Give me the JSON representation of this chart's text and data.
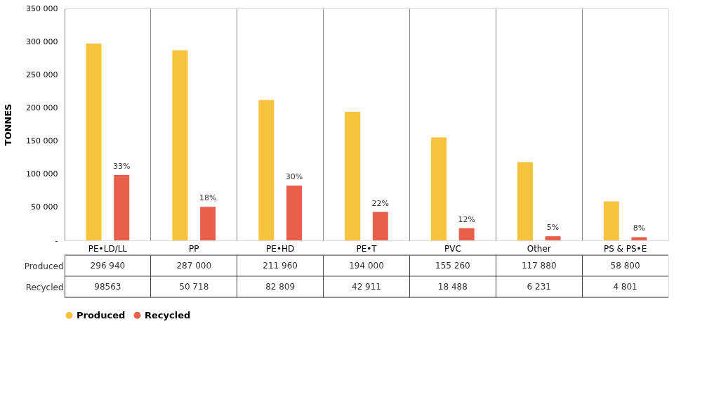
{
  "chart_data": {
    "type": "bar",
    "ylabel": "TONNES",
    "categories": [
      "PE•LD/LL",
      "PP",
      "PE•HD",
      "PE•T",
      "PVC",
      "Other",
      "PS & PS•E"
    ],
    "series": [
      {
        "name": "Produced",
        "color": "#f7c23c",
        "values": [
          296940,
          287000,
          211960,
          194000,
          155260,
          117880,
          58800
        ],
        "value_labels": [
          "296 940",
          "287 000",
          "211 960",
          "194 000",
          "155 260",
          "117 880",
          "58 800"
        ]
      },
      {
        "name": "Recycled",
        "color": "#e8604c",
        "values": [
          98563,
          50718,
          82809,
          42911,
          18488,
          6231,
          4801
        ],
        "value_labels": [
          "98563",
          "50 718",
          "82 809",
          "42 911",
          "18 488",
          "6 231",
          "4 801"
        ]
      }
    ],
    "ylim": [
      0,
      350000
    ],
    "yticks": [
      {
        "value": 0,
        "label": "-"
      },
      {
        "value": 50000,
        "label": "50 000"
      },
      {
        "value": 100000,
        "label": "100 000"
      },
      {
        "value": 150000,
        "label": "150 000"
      },
      {
        "value": 200000,
        "label": "200 000"
      },
      {
        "value": 250000,
        "label": "250 000"
      },
      {
        "value": 300000,
        "label": "300 000"
      },
      {
        "value": 350000,
        "label": "350 000"
      }
    ],
    "annotations": [
      "33%",
      "18%",
      "30%",
      "22%",
      "12%",
      "5%",
      "8%"
    ],
    "grid": "x",
    "legend": "bottom"
  }
}
